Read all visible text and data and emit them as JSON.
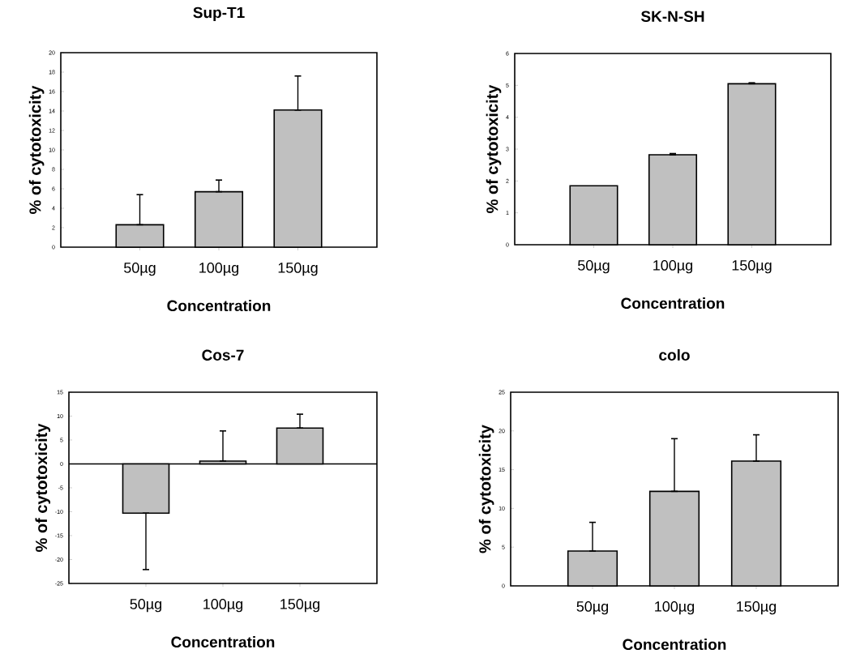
{
  "chart_data": [
    {
      "type": "bar",
      "title": "Sup-T1",
      "xlabel": "Concentration",
      "ylabel": "% of cytotoxicity",
      "categories": [
        "50µg",
        "100µg",
        "150µg"
      ],
      "values": [
        2.3,
        5.7,
        14.1
      ],
      "errors": [
        [
          2.3,
          5.4
        ],
        [
          5.7,
          6.9
        ],
        [
          14.1,
          17.6
        ]
      ],
      "color": "#c0c0c0",
      "ylim": [
        0,
        20
      ],
      "yticks": [
        0,
        2,
        4,
        6,
        8,
        10,
        12,
        14,
        16,
        18,
        20
      ]
    },
    {
      "type": "bar",
      "title": "SK-N-SH",
      "xlabel": "Concentration",
      "ylabel": "% of cytotoxicity",
      "categories": [
        "50µg",
        "100µg",
        "150µg"
      ],
      "values": [
        1.85,
        2.82,
        5.05
      ],
      "errors": [
        null,
        [
          2.82,
          2.86
        ],
        [
          5.05,
          5.08
        ]
      ],
      "color": "#c0c0c0",
      "ylim": [
        0,
        6
      ],
      "yticks": [
        0,
        1,
        2,
        3,
        4,
        5,
        6
      ]
    },
    {
      "type": "bar",
      "title": "Cos-7",
      "xlabel": "Concentration",
      "ylabel": "% of cytotoxicity",
      "categories": [
        "50µg",
        "100µg",
        "150µg"
      ],
      "values": [
        -10.3,
        0.6,
        7.5
      ],
      "errors": [
        [
          -22.1,
          -10.3
        ],
        [
          0.6,
          6.9
        ],
        [
          7.5,
          10.4
        ]
      ],
      "color": "#c0c0c0",
      "ylim": [
        -25,
        15
      ],
      "yticks": [
        -25,
        -20,
        -15,
        -10,
        -5,
        0,
        5,
        10,
        15
      ]
    },
    {
      "type": "bar",
      "title": "colo",
      "xlabel": "Concentration",
      "ylabel": "% of cytotoxicity",
      "categories": [
        "50µg",
        "100µg",
        "150µg"
      ],
      "values": [
        4.5,
        12.2,
        16.1
      ],
      "errors": [
        [
          4.5,
          8.2
        ],
        [
          12.2,
          19.0
        ],
        [
          16.1,
          19.5
        ]
      ],
      "color": "#c0c0c0",
      "ylim": [
        0,
        25
      ],
      "yticks": [
        0,
        5,
        10,
        15,
        20,
        25
      ]
    }
  ]
}
